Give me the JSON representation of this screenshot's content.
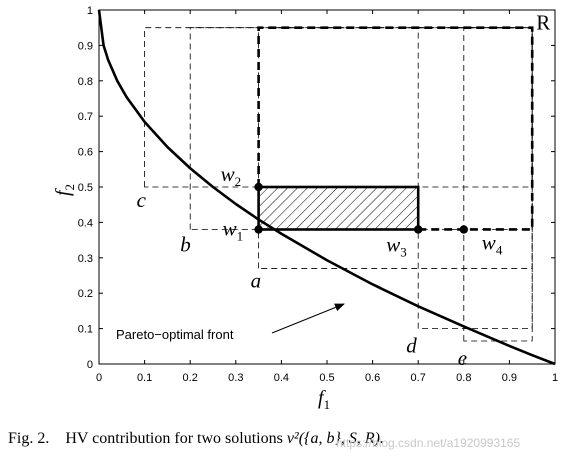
{
  "chart_data": {
    "type": "line",
    "xlabel": "f",
    "xlabel_sub": "1",
    "ylabel": "f",
    "ylabel_sub": "2",
    "xlim": [
      0,
      1
    ],
    "ylim": [
      0,
      1
    ],
    "xticks": [
      "0",
      "0.1",
      "0.2",
      "0.3",
      "0.4",
      "0.5",
      "0.6",
      "0.7",
      "0.8",
      "0.9",
      "1"
    ],
    "yticks": [
      "0",
      "0.1",
      "0.2",
      "0.3",
      "0.4",
      "0.5",
      "0.6",
      "0.7",
      "0.8",
      "0.9",
      "1"
    ],
    "grid": false,
    "front": {
      "label": "Pareto−optimal front",
      "x": [
        0,
        0.01,
        0.02,
        0.04,
        0.06,
        0.1,
        0.15,
        0.2,
        0.25,
        0.3,
        0.35,
        0.4,
        0.5,
        0.6,
        0.7,
        0.8,
        0.9,
        0.95,
        1.0
      ],
      "y": [
        1.0,
        0.9,
        0.859,
        0.8,
        0.755,
        0.684,
        0.613,
        0.553,
        0.5,
        0.452,
        0.408,
        0.368,
        0.293,
        0.225,
        0.163,
        0.106,
        0.051,
        0.025,
        0.0
      ]
    },
    "points": [
      {
        "label": "a",
        "x": 0.35,
        "y": 0.27
      },
      {
        "label": "b",
        "x": 0.2,
        "y": 0.38
      },
      {
        "label": "c",
        "x": 0.1,
        "y": 0.5
      },
      {
        "label": "d",
        "x": 0.7,
        "y": 0.1
      },
      {
        "label": "e",
        "x": 0.8,
        "y": 0.065
      }
    ],
    "reference_point": {
      "label": "R",
      "x": 0.95,
      "y": 0.95
    },
    "w_points": [
      {
        "label": "w",
        "sub": "1",
        "x": 0.35,
        "y": 0.38
      },
      {
        "label": "w",
        "sub": "2",
        "x": 0.35,
        "y": 0.5
      },
      {
        "label": "w",
        "sub": "3",
        "x": 0.7,
        "y": 0.38
      },
      {
        "label": "w",
        "sub": "4",
        "x": 0.8,
        "y": 0.38
      }
    ],
    "hatched_region": {
      "x": [
        0.35,
        0.7
      ],
      "y": [
        0.38,
        0.5
      ]
    }
  },
  "caption": {
    "prefix": "Fig. 2.",
    "text": "HV contribution for two solutions ",
    "math": "v²({a, b}, S, R)."
  },
  "watermark": "https://blog.csdn.net/a1920993165"
}
